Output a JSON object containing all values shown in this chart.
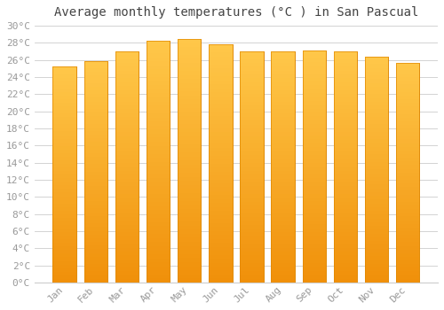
{
  "title": "Average monthly temperatures (°C ) in San Pascual",
  "months": [
    "Jan",
    "Feb",
    "Mar",
    "Apr",
    "May",
    "Jun",
    "Jul",
    "Aug",
    "Sep",
    "Oct",
    "Nov",
    "Dec"
  ],
  "values": [
    25.2,
    25.9,
    27.0,
    28.2,
    28.5,
    27.8,
    27.0,
    27.0,
    27.1,
    27.0,
    26.4,
    25.7
  ],
  "bar_color_top": "#FFC84A",
  "bar_color_bottom": "#F0900A",
  "bar_edge_color": "#E08800",
  "ylim": [
    0,
    30
  ],
  "ytick_step": 2,
  "background_color": "#ffffff",
  "grid_color": "#cccccc",
  "title_fontsize": 10,
  "tick_fontsize": 8,
  "tick_label_color": "#999999",
  "title_color": "#444444"
}
